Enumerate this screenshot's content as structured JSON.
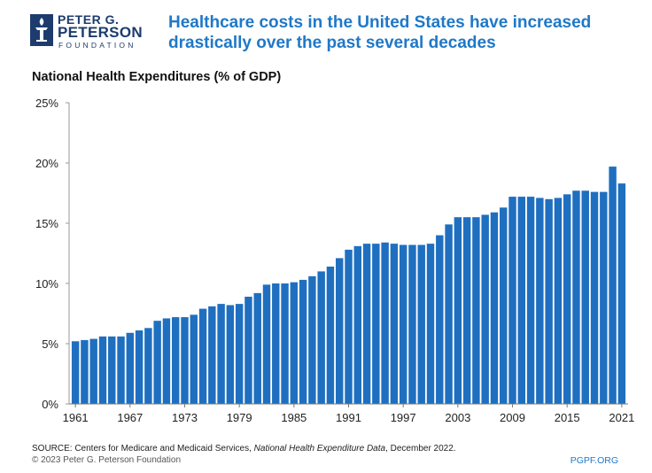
{
  "logo": {
    "line1": "PETER G.",
    "line2": "PETERSON",
    "line3": "FOUNDATION",
    "icon": "torch-icon"
  },
  "headline": "Healthcare costs in the United States have increased drastically over the past several decades",
  "colors": {
    "bar": "#1f6fc0",
    "headline": "#1f78c8",
    "logo": "#1d3c6d"
  },
  "footer": {
    "source_prefix": "SOURCE: Centers for Medicare and Medicaid Services, ",
    "source_italic": "National Health Expenditure Data",
    "source_suffix": ", December 2022.",
    "copyright": "© 2023 Peter G. Peterson Foundation",
    "website": "PGPF.ORG"
  },
  "chart_data": {
    "type": "bar",
    "title": "National Health Expenditures (% of GDP)",
    "ylim": [
      0,
      25
    ],
    "yticks": [
      0,
      5,
      10,
      15,
      20,
      25
    ],
    "ytick_labels": [
      "0%",
      "5%",
      "10%",
      "15%",
      "20%",
      "25%"
    ],
    "xtick_labels": [
      "1961",
      "1967",
      "1973",
      "1979",
      "1985",
      "1991",
      "1997",
      "2003",
      "2009",
      "2015",
      "2021"
    ],
    "grid": false,
    "categories": [
      "1961",
      "1962",
      "1963",
      "1964",
      "1965",
      "1966",
      "1967",
      "1968",
      "1969",
      "1970",
      "1971",
      "1972",
      "1973",
      "1974",
      "1975",
      "1976",
      "1977",
      "1978",
      "1979",
      "1980",
      "1981",
      "1982",
      "1983",
      "1984",
      "1985",
      "1986",
      "1987",
      "1988",
      "1989",
      "1990",
      "1991",
      "1992",
      "1993",
      "1994",
      "1995",
      "1996",
      "1997",
      "1998",
      "1999",
      "2000",
      "2001",
      "2002",
      "2003",
      "2004",
      "2005",
      "2006",
      "2007",
      "2008",
      "2009",
      "2010",
      "2011",
      "2012",
      "2013",
      "2014",
      "2015",
      "2016",
      "2017",
      "2018",
      "2019",
      "2020",
      "2021"
    ],
    "values": [
      5.2,
      5.3,
      5.4,
      5.6,
      5.6,
      5.6,
      5.9,
      6.1,
      6.3,
      6.9,
      7.1,
      7.2,
      7.2,
      7.4,
      7.9,
      8.1,
      8.3,
      8.2,
      8.3,
      8.9,
      9.2,
      9.9,
      10.0,
      10.0,
      10.1,
      10.3,
      10.6,
      11.0,
      11.4,
      12.1,
      12.8,
      13.1,
      13.3,
      13.3,
      13.4,
      13.3,
      13.2,
      13.2,
      13.2,
      13.3,
      14.0,
      14.9,
      15.5,
      15.5,
      15.5,
      15.7,
      15.9,
      16.3,
      17.2,
      17.2,
      17.2,
      17.1,
      17.0,
      17.1,
      17.4,
      17.7,
      17.7,
      17.6,
      17.6,
      19.7,
      18.3
    ]
  }
}
